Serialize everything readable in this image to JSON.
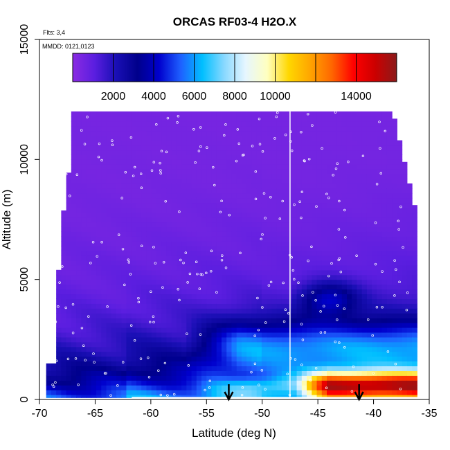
{
  "chart_data": {
    "type": "heatmap",
    "title": "ORCAS RF03-4 H2O.X",
    "xlabel": "Latitude (deg N)",
    "ylabel": "Altitude (m)",
    "flights_note": "Flts: 3,4",
    "dates_note": "MMDD: 0121,0123",
    "xlim": [
      -70,
      -35
    ],
    "ylim": [
      0,
      15000
    ],
    "x_ticks": [
      -70,
      -65,
      -60,
      -55,
      -50,
      -45,
      -40,
      -35
    ],
    "y_ticks": [
      0,
      5000,
      10000,
      15000
    ],
    "colorbar": {
      "range": [
        0,
        16000
      ],
      "tick_values": [
        2000,
        4000,
        6000,
        8000,
        10000,
        14000
      ],
      "divider_values": [
        2000,
        4000,
        6000,
        8000,
        10000,
        12000,
        14000
      ],
      "colors": [
        "#8a2be2",
        "#5b1ee0",
        "#1a0fb5",
        "#00008b",
        "#0000cd",
        "#1e60ff",
        "#00bfff",
        "#87d8ff",
        "#e6f6ff",
        "#ffffc0",
        "#ffd700",
        "#ffa500",
        "#ff6600",
        "#ff0000",
        "#cc0000",
        "#8b1a1a"
      ]
    },
    "vertical_line_x": -47.5,
    "arrows_x": [
      -53,
      -41.3
    ],
    "grid": false,
    "legend": "colorbar-top"
  }
}
